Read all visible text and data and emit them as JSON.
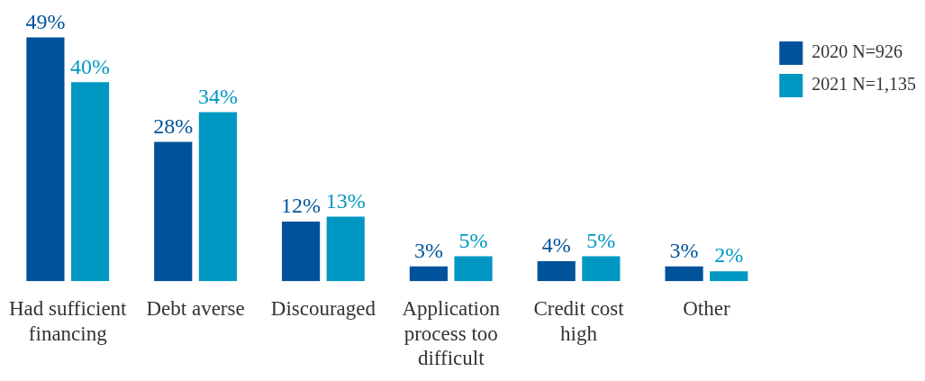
{
  "chart_data": {
    "type": "bar",
    "categories": [
      "Had sufficient financing",
      "Debt averse",
      "Discouraged",
      "Application process too difficult",
      "Credit cost high",
      "Other"
    ],
    "series": [
      {
        "name": "2020 N=926",
        "color": "#00529b",
        "values": [
          49,
          28,
          12,
          3,
          4,
          3
        ],
        "value_labels": [
          "49%",
          "28%",
          "12%",
          "3%",
          "4%",
          "3%"
        ]
      },
      {
        "name": "2021 N=1,135",
        "color": "#0098c3",
        "values": [
          40,
          34,
          13,
          5,
          5,
          2
        ],
        "value_labels": [
          "40%",
          "34%",
          "13%",
          "5%",
          "5%",
          "2%"
        ]
      }
    ],
    "legend": "top right"
  }
}
